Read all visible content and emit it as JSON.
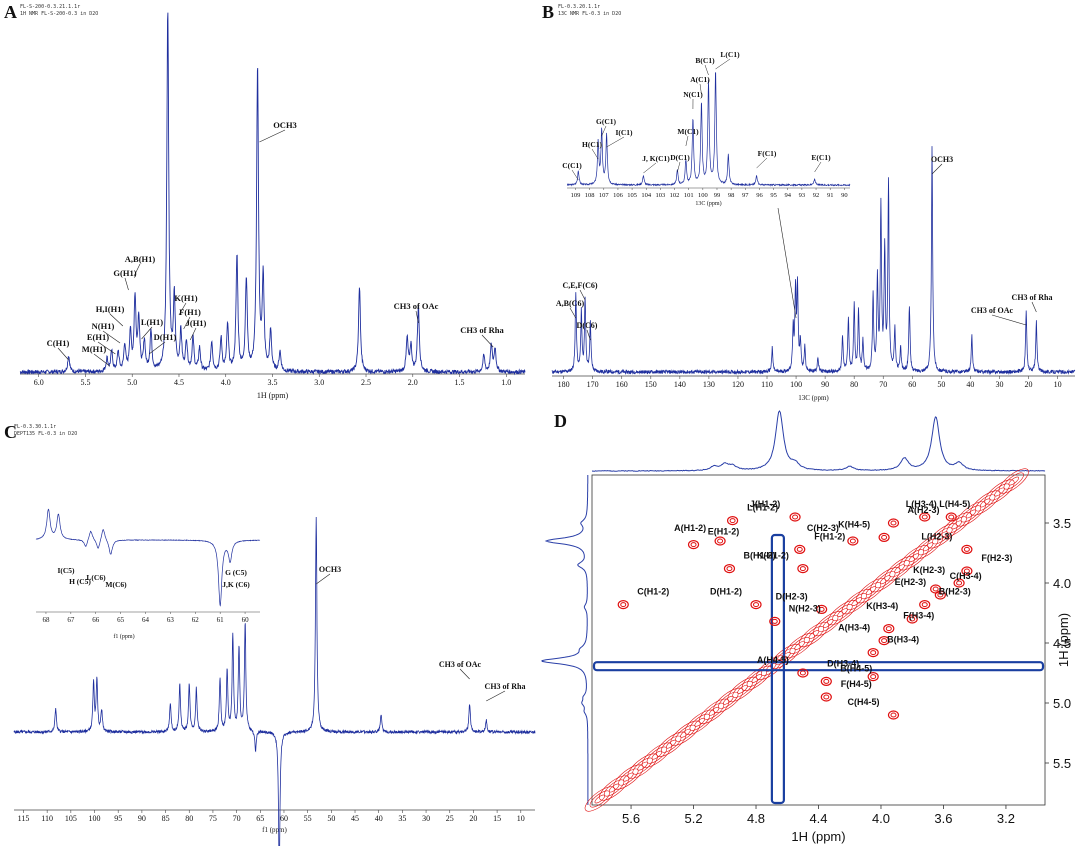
{
  "chart_data": [
    {
      "id": "A",
      "type": "line",
      "panel_label": "A",
      "header": [
        "FL-S-200-0.3.21.1.1r",
        "1H NMR FL-S-200-0.3 in D2O"
      ],
      "xlabel": "1H (ppm)",
      "xlim": [
        6.2,
        0.8
      ],
      "x_ticks": [
        "6.0",
        "5.5",
        "5.0",
        "4.5",
        "4.0",
        "3.5",
        "3.0",
        "2.5",
        "2.0",
        "1.5",
        "1.0"
      ],
      "series": [
        {
          "peaks": [
            {
              "ppm": 5.68,
              "h": 0.05
            },
            {
              "ppm": 5.27,
              "h": 0.04
            },
            {
              "ppm": 5.22,
              "h": 0.06
            },
            {
              "ppm": 5.15,
              "h": 0.06
            },
            {
              "ppm": 5.08,
              "h": 0.08
            },
            {
              "ppm": 5.02,
              "h": 0.12
            },
            {
              "ppm": 4.97,
              "h": 0.22
            },
            {
              "ppm": 4.93,
              "h": 0.16
            },
            {
              "ppm": 4.87,
              "h": 0.09
            },
            {
              "ppm": 4.8,
              "h": 0.12
            },
            {
              "ppm": 4.62,
              "h": 1.1
            },
            {
              "ppm": 4.55,
              "h": 0.22
            },
            {
              "ppm": 4.48,
              "h": 0.12
            },
            {
              "ppm": 4.42,
              "h": 0.09
            },
            {
              "ppm": 4.35,
              "h": 0.1
            },
            {
              "ppm": 4.28,
              "h": 0.07
            },
            {
              "ppm": 4.15,
              "h": 0.09
            },
            {
              "ppm": 4.05,
              "h": 0.1
            },
            {
              "ppm": 3.98,
              "h": 0.14
            },
            {
              "ppm": 3.88,
              "h": 0.35
            },
            {
              "ppm": 3.78,
              "h": 0.28
            },
            {
              "ppm": 3.66,
              "h": 0.92
            },
            {
              "ppm": 3.6,
              "h": 0.28
            },
            {
              "ppm": 3.52,
              "h": 0.12
            },
            {
              "ppm": 3.42,
              "h": 0.06
            },
            {
              "ppm": 2.57,
              "h": 0.26
            },
            {
              "ppm": 2.06,
              "h": 0.1
            },
            {
              "ppm": 2.02,
              "h": 0.08
            },
            {
              "ppm": 1.94,
              "h": 0.2
            },
            {
              "ppm": 1.24,
              "h": 0.05
            },
            {
              "ppm": 1.16,
              "h": 0.08
            },
            {
              "ppm": 1.12,
              "h": 0.07
            }
          ]
        }
      ],
      "annotations": [
        {
          "text": "OCH3",
          "ppm": 3.64,
          "level": 0.74
        },
        {
          "text": "A,B(H1)",
          "ppm": 4.98,
          "level": 0.35
        },
        {
          "text": "G(H1)",
          "ppm": 5.04,
          "level": 0.3
        },
        {
          "text": "H,I(H1)",
          "ppm": 5.1,
          "level": 0.22
        },
        {
          "text": "N(H1)",
          "ppm": 5.13,
          "level": 0.18
        },
        {
          "text": "E(H1)",
          "ppm": 5.18,
          "level": 0.14
        },
        {
          "text": "M(H1)",
          "ppm": 5.24,
          "level": 0.1
        },
        {
          "text": "C(H1)",
          "ppm": 5.68,
          "level": 0.12
        },
        {
          "text": "L(H1)",
          "ppm": 4.9,
          "level": 0.2
        },
        {
          "text": "D(H1)",
          "ppm": 4.82,
          "level": 0.2
        },
        {
          "text": "K(H1)",
          "ppm": 4.5,
          "level": 0.26
        },
        {
          "text": "F(H1)",
          "ppm": 4.45,
          "level": 0.22
        },
        {
          "text": "J(H1)",
          "ppm": 4.38,
          "level": 0.18
        },
        {
          "text": "CH3 of OAc",
          "ppm": 1.94,
          "level": 0.3
        },
        {
          "text": "CH3 of Rha",
          "ppm": 1.14,
          "level": 0.2
        }
      ]
    },
    {
      "id": "B",
      "type": "line",
      "panel_label": "B",
      "header": [
        "FL-0.3.20.1.1r",
        "13C NMR FL-0.3 in D2O"
      ],
      "xlabel": "13C (ppm)",
      "xlim": [
        184,
        4
      ],
      "x_ticks": [
        "180",
        "170",
        "160",
        "150",
        "140",
        "130",
        "120",
        "110",
        "100",
        "90",
        "80",
        "70",
        "60",
        "50",
        "40",
        "30",
        "20",
        "10"
      ],
      "series": [
        {
          "peaks": [
            {
              "ppm": 175.8,
              "h": 0.26
            },
            {
              "ppm": 173.9,
              "h": 0.2
            },
            {
              "ppm": 172.6,
              "h": 0.24
            },
            {
              "ppm": 170.8,
              "h": 0.17
            },
            {
              "ppm": 108.2,
              "h": 0.08
            },
            {
              "ppm": 101,
              "h": 0.14
            },
            {
              "ppm": 100.2,
              "h": 0.26
            },
            {
              "ppm": 99.5,
              "h": 0.28
            },
            {
              "ppm": 98.5,
              "h": 0.1
            },
            {
              "ppm": 97,
              "h": 0.08
            },
            {
              "ppm": 92.5,
              "h": 0.05
            },
            {
              "ppm": 84,
              "h": 0.12
            },
            {
              "ppm": 82,
              "h": 0.18
            },
            {
              "ppm": 80,
              "h": 0.22
            },
            {
              "ppm": 78.5,
              "h": 0.2
            },
            {
              "ppm": 77,
              "h": 0.1
            },
            {
              "ppm": 73.5,
              "h": 0.25
            },
            {
              "ppm": 72,
              "h": 0.3
            },
            {
              "ppm": 70.8,
              "h": 0.55
            },
            {
              "ppm": 69.5,
              "h": 0.4
            },
            {
              "ppm": 68.2,
              "h": 0.62
            },
            {
              "ppm": 66,
              "h": 0.14
            },
            {
              "ppm": 64,
              "h": 0.08
            },
            {
              "ppm": 61,
              "h": 0.22
            },
            {
              "ppm": 53.2,
              "h": 0.75
            },
            {
              "ppm": 39.5,
              "h": 0.12
            },
            {
              "ppm": 20.8,
              "h": 0.2
            },
            {
              "ppm": 17.3,
              "h": 0.17
            }
          ]
        }
      ],
      "inset": {
        "xlabel": "13C (ppm)",
        "xlim": [
          109.6,
          89.6
        ],
        "x_ticks": [
          "109",
          "108",
          "107",
          "106",
          "105",
          "104",
          "103",
          "102",
          "101",
          "100",
          "99",
          "98",
          "97",
          "96",
          "95",
          "94",
          "93",
          "92",
          "91",
          "90"
        ],
        "peaks": [
          {
            "ppm": 108.8,
            "h": 0.12
          },
          {
            "ppm": 107.4,
            "h": 0.35
          },
          {
            "ppm": 107.15,
            "h": 0.45
          },
          {
            "ppm": 106.8,
            "h": 0.42
          },
          {
            "ppm": 104.2,
            "h": 0.08
          },
          {
            "ppm": 101.8,
            "h": 0.12
          },
          {
            "ppm": 101.2,
            "h": 0.2
          },
          {
            "ppm": 100.7,
            "h": 0.55
          },
          {
            "ppm": 100.1,
            "h": 0.68
          },
          {
            "ppm": 99.6,
            "h": 0.85
          },
          {
            "ppm": 99.1,
            "h": 0.95
          },
          {
            "ppm": 98.2,
            "h": 0.25
          },
          {
            "ppm": 96.2,
            "h": 0.08
          },
          {
            "ppm": 92.1,
            "h": 0.05
          }
        ],
        "annotations": [
          {
            "text": "C(C1)",
            "ppm": 108.8
          },
          {
            "text": "H(C1)",
            "ppm": 107.4
          },
          {
            "text": "G(C1)",
            "ppm": 107.15
          },
          {
            "text": "I(C1)",
            "ppm": 106.8
          },
          {
            "text": "J, K(C1)",
            "ppm": 104.2
          },
          {
            "text": "D(C1)",
            "ppm": 101.8
          },
          {
            "text": "M(C1)",
            "ppm": 101.2
          },
          {
            "text": "N(C1)",
            "ppm": 100.7
          },
          {
            "text": "A(C1)",
            "ppm": 100.1
          },
          {
            "text": "B(C1)",
            "ppm": 99.6
          },
          {
            "text": "L(C1)",
            "ppm": 99.1
          },
          {
            "text": "F(C1)",
            "ppm": 96.2
          },
          {
            "text": "E(C1)",
            "ppm": 92.1
          }
        ]
      },
      "annotations": [
        {
          "text": "OCH3",
          "ppm": 53.2
        },
        {
          "text": "A,B(C6)",
          "ppm": 175.8
        },
        {
          "text": "C,E,F(C6)",
          "ppm": 172.6
        },
        {
          "text": "D(C6)",
          "ppm": 170.8
        },
        {
          "text": "CH3 of OAc",
          "ppm": 20.8
        },
        {
          "text": "CH3 of Rha",
          "ppm": 17.3
        }
      ]
    },
    {
      "id": "C",
      "type": "line",
      "panel_label": "C",
      "header": [
        "FL-0.3.30.1.1r",
        "DEPT135 FL-0.3 in D2O"
      ],
      "xlabel": "f1 (ppm)",
      "xlim": [
        117,
        7
      ],
      "x_ticks": [
        "115",
        "110",
        "105",
        "100",
        "95",
        "90",
        "85",
        "80",
        "75",
        "70",
        "65",
        "60",
        "55",
        "50",
        "45",
        "40",
        "35",
        "30",
        "25",
        "20",
        "15",
        "10"
      ],
      "series": [
        {
          "peaks": [
            {
              "ppm": 108.2,
              "h": 0.1
            },
            {
              "ppm": 100.2,
              "h": 0.2
            },
            {
              "ppm": 99.5,
              "h": 0.22
            },
            {
              "ppm": 98.5,
              "h": 0.09
            },
            {
              "ppm": 84,
              "h": 0.12
            },
            {
              "ppm": 82,
              "h": 0.2
            },
            {
              "ppm": 80,
              "h": 0.2
            },
            {
              "ppm": 78.5,
              "h": 0.18
            },
            {
              "ppm": 73.5,
              "h": 0.22
            },
            {
              "ppm": 72,
              "h": 0.25
            },
            {
              "ppm": 70.8,
              "h": 0.4
            },
            {
              "ppm": 69.5,
              "h": 0.35
            },
            {
              "ppm": 68.2,
              "h": 0.45
            },
            {
              "ppm": 66,
              "h": -0.08
            },
            {
              "ppm": 61,
              "h": -0.6
            },
            {
              "ppm": 53.2,
              "h": 0.9
            },
            {
              "ppm": 39.5,
              "h": 0.07
            },
            {
              "ppm": 20.8,
              "h": 0.12
            },
            {
              "ppm": 17.3,
              "h": 0.05
            }
          ]
        }
      ],
      "inset": {
        "xlabel": "f1 (ppm)",
        "xlim": [
          68.4,
          59.4
        ],
        "x_ticks": [
          "68",
          "67",
          "66",
          "65",
          "64",
          "63",
          "62",
          "61",
          "60"
        ],
        "peaks": [
          {
            "ppm": 67.9,
            "h": 0.6
          },
          {
            "ppm": 67.5,
            "h": 0.5
          },
          {
            "ppm": 66.4,
            "h": -0.15
          },
          {
            "ppm": 66.2,
            "h": 0.2
          },
          {
            "ppm": 65.9,
            "h": -0.2
          },
          {
            "ppm": 65.7,
            "h": 0.25
          },
          {
            "ppm": 65.4,
            "h": -0.3
          },
          {
            "ppm": 61,
            "h": -1.3
          },
          {
            "ppm": 60.6,
            "h": -0.4
          }
        ],
        "annotations": [
          {
            "text": "I(C5)",
            "ppm": 66.6
          },
          {
            "text": "H (C5)",
            "ppm": 66.1
          },
          {
            "text": "L(C6)",
            "ppm": 65.8
          },
          {
            "text": "M(C6)",
            "ppm": 65.4
          },
          {
            "text": "G (C5)",
            "ppm": 61
          },
          {
            "text": "J,K (C6)",
            "ppm": 61
          }
        ]
      },
      "annotations": [
        {
          "text": "OCH3",
          "ppm": 53.2
        },
        {
          "text": "CH3 of OAc",
          "ppm": 20.8
        },
        {
          "text": "CH3 of Rha",
          "ppm": 17.3
        }
      ]
    },
    {
      "id": "D",
      "type": "heatmap",
      "panel_label": "D",
      "xlabel": "1H (ppm)",
      "ylabel": "1H (ppm)",
      "xlim": [
        5.85,
        2.95
      ],
      "ylim": [
        3.1,
        5.85
      ],
      "x_ticks": [
        "5.6",
        "5.2",
        "4.8",
        "4.4",
        "4.0",
        "3.6",
        "3.2"
      ],
      "y_ticks": [
        "3.5",
        "4.0",
        "4.5",
        "5.0",
        "5.5"
      ],
      "colors": {
        "positive": "#e01010",
        "negative": "#1a3fa0",
        "projection": "#2a3fa8"
      },
      "cross_peaks": [
        {
          "label": "J(H1-2)",
          "x": 4.55,
          "y": 3.45
        },
        {
          "label": "L(H1-2)",
          "x": 4.95,
          "y": 3.48
        },
        {
          "label": "A(H1-2)",
          "x": 5.03,
          "y": 3.65
        },
        {
          "label": "E(H1-2)",
          "x": 5.2,
          "y": 3.68
        },
        {
          "label": "C(H2-3)",
          "x": 4.18,
          "y": 3.65
        },
        {
          "label": "A(H2-3)",
          "x": 3.92,
          "y": 3.5
        },
        {
          "label": "K(H4-5)",
          "x": 3.98,
          "y": 3.62
        },
        {
          "label": "L(H4-5)",
          "x": 3.72,
          "y": 3.45
        },
        {
          "label": "L(H3-4)",
          "x": 3.55,
          "y": 3.45
        },
        {
          "label": "F(H1-2)",
          "x": 4.52,
          "y": 3.72
        },
        {
          "label": "K(H1-2)",
          "x": 4.5,
          "y": 3.88
        },
        {
          "label": "B(H1-2)",
          "x": 4.97,
          "y": 3.88
        },
        {
          "label": "L(H2-3)",
          "x": 3.45,
          "y": 3.72
        },
        {
          "label": "F(H2-3)",
          "x": 3.45,
          "y": 3.9
        },
        {
          "label": "K(H2-3)",
          "x": 3.5,
          "y": 4.0
        },
        {
          "label": "C(H3-4)",
          "x": 3.65,
          "y": 4.05
        },
        {
          "label": "E(H2-3)",
          "x": 3.62,
          "y": 4.1
        },
        {
          "label": "B(H2-3)",
          "x": 3.72,
          "y": 4.18
        },
        {
          "label": "K(H3-4)",
          "x": 3.8,
          "y": 4.3
        },
        {
          "label": "F(H3-4)",
          "x": 3.95,
          "y": 4.38
        },
        {
          "label": "A(H3-4)",
          "x": 3.98,
          "y": 4.48
        },
        {
          "label": "B(H3-4)",
          "x": 4.05,
          "y": 4.58
        },
        {
          "label": "D(H1-2)",
          "x": 4.8,
          "y": 4.18
        },
        {
          "label": "N(H2-3)",
          "x": 4.68,
          "y": 4.32
        },
        {
          "label": "D(H2-3)",
          "x": 4.38,
          "y": 4.22
        },
        {
          "label": "C(H1-2)",
          "x": 5.65,
          "y": 4.18
        },
        {
          "label": "A(H4-5)",
          "x": 4.5,
          "y": 4.75
        },
        {
          "label": "B(H4-5)",
          "x": 4.35,
          "y": 4.82
        },
        {
          "label": "D(H3-4)",
          "x": 4.05,
          "y": 4.78
        },
        {
          "label": "F(H4-5)",
          "x": 4.35,
          "y": 4.95
        },
        {
          "label": "C(H4-5)",
          "x": 3.92,
          "y": 5.1
        }
      ]
    }
  ]
}
